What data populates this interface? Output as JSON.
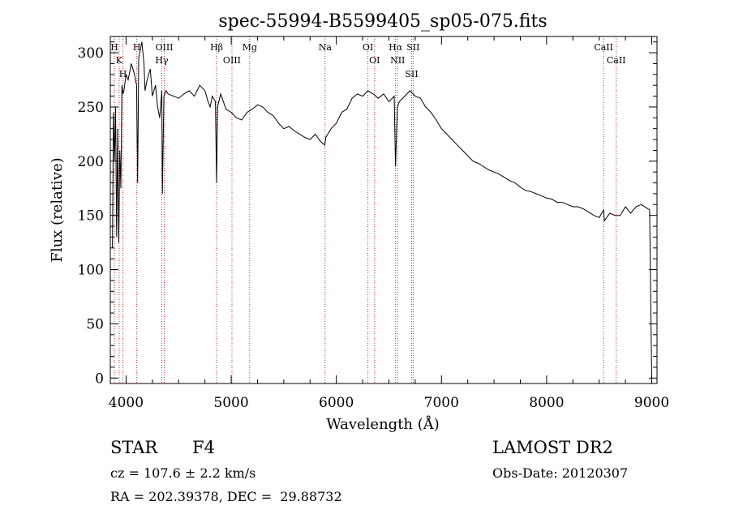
{
  "chart_data": {
    "type": "line",
    "title": "spec-55994-B5599405_sp05-075.fits",
    "xlabel": "Wavelength (Å)",
    "ylabel": "Flux (relative)",
    "xlim": [
      3850,
      9050
    ],
    "ylim": [
      -5,
      315
    ],
    "xticks": [
      4000,
      5000,
      6000,
      7000,
      8000,
      9000
    ],
    "yticks": [
      0,
      50,
      100,
      150,
      200,
      250,
      300
    ],
    "x_tick_labels": [
      "4000",
      "5000",
      "6000",
      "7000",
      "8000",
      "9000"
    ],
    "y_tick_labels": [
      "0",
      "50",
      "100",
      "150",
      "200",
      "250",
      "300"
    ],
    "grid": false,
    "line_color": "#000000",
    "marker_color": "#cc3333",
    "series": [
      {
        "x": [
          3870,
          3880,
          3890,
          3900,
          3910,
          3920,
          3930,
          3940,
          3950,
          3960,
          3970,
          3980,
          4000,
          4020,
          4050,
          4080,
          4100,
          4110,
          4120,
          4150,
          4170,
          4180,
          4200,
          4230,
          4250,
          4280,
          4300,
          4320,
          4340,
          4345,
          4360,
          4380,
          4400,
          4450,
          4500,
          4550,
          4600,
          4650,
          4700,
          4750,
          4780,
          4800,
          4820,
          4850,
          4861,
          4870,
          4900,
          4950,
          5000,
          5050,
          5100,
          5150,
          5200,
          5250,
          5300,
          5350,
          5400,
          5450,
          5500,
          5550,
          5600,
          5650,
          5700,
          5750,
          5800,
          5850,
          5890,
          5900,
          5950,
          6000,
          6050,
          6100,
          6150,
          6200,
          6250,
          6300,
          6350,
          6400,
          6450,
          6500,
          6550,
          6563,
          6580,
          6600,
          6650,
          6700,
          6750,
          6800,
          6850,
          6900,
          6950,
          7000,
          7050,
          7100,
          7150,
          7200,
          7250,
          7300,
          7350,
          7400,
          7450,
          7500,
          7550,
          7600,
          7650,
          7700,
          7750,
          7800,
          7850,
          7900,
          7950,
          8000,
          8050,
          8100,
          8150,
          8200,
          8250,
          8300,
          8350,
          8400,
          8450,
          8500,
          8542,
          8550,
          8600,
          8650,
          8700,
          8750,
          8800,
          8850,
          8900,
          8950,
          8980,
          9000
        ],
        "y": [
          120,
          245,
          200,
          250,
          130,
          230,
          125,
          210,
          175,
          270,
          262,
          265,
          280,
          275,
          290,
          280,
          270,
          180,
          295,
          310,
          290,
          265,
          275,
          285,
          260,
          270,
          250,
          240,
          265,
          170,
          260,
          265,
          262,
          260,
          258,
          262,
          265,
          260,
          270,
          265,
          255,
          250,
          260,
          255,
          180,
          250,
          262,
          248,
          245,
          240,
          238,
          245,
          248,
          252,
          250,
          245,
          242,
          235,
          230,
          232,
          228,
          225,
          222,
          220,
          225,
          218,
          215,
          222,
          230,
          235,
          245,
          248,
          258,
          262,
          260,
          265,
          262,
          258,
          262,
          255,
          260,
          195,
          250,
          255,
          260,
          265,
          260,
          258,
          250,
          245,
          238,
          230,
          225,
          220,
          215,
          210,
          205,
          200,
          198,
          195,
          192,
          190,
          188,
          185,
          182,
          180,
          176,
          173,
          172,
          170,
          168,
          166,
          165,
          162,
          162,
          160,
          158,
          158,
          156,
          153,
          150,
          148,
          155,
          145,
          152,
          150,
          150,
          158,
          152,
          158,
          160,
          157,
          155,
          0
        ]
      }
    ],
    "line_markers": [
      {
        "label": "H",
        "x": 3889
      },
      {
        "label": "K",
        "x": 3934
      },
      {
        "label": "H",
        "x": 3970
      },
      {
        "label": "H",
        "x": 4102
      },
      {
        "label": "OIII",
        "x": 4363
      },
      {
        "label": "Hγ",
        "x": 4340
      },
      {
        "label": "Hβ",
        "x": 4861
      },
      {
        "label": "OIII",
        "x": 5007
      },
      {
        "label": "Mg",
        "x": 5175
      },
      {
        "label": "Na",
        "x": 5893
      },
      {
        "label": "OI",
        "x": 6300
      },
      {
        "label": "OI",
        "x": 6364
      },
      {
        "label": "Hα",
        "x": 6563
      },
      {
        "label": "NII",
        "x": 6583
      },
      {
        "label": "SII",
        "x": 6716
      },
      {
        "label": "SII",
        "x": 6731
      },
      {
        "label": "CaII",
        "x": 8542
      },
      {
        "label": "CaII",
        "x": 8662
      }
    ]
  },
  "info": {
    "class_label": "STAR",
    "subclass": "F4",
    "survey": "LAMOST DR2",
    "redshift": "cz = 107.6 ± 2.2 km/s",
    "obs_date": "Obs-Date: 20120307",
    "coords": "RA = 202.39378, DEC =  29.88732"
  }
}
